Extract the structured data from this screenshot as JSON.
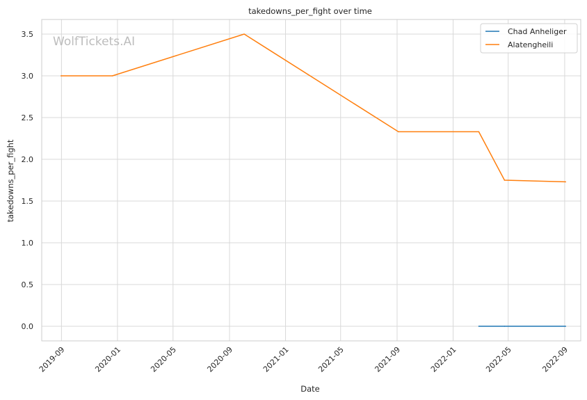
{
  "watermark": "WolfTickets.AI",
  "colors": {
    "background": "#ffffff",
    "grid": "#d9d9d9",
    "spine": "#cccccc",
    "chad": "#1f77b4",
    "alatengheili": "#ff7f0e"
  },
  "chart_data": {
    "type": "line",
    "title": "takedowns_per_fight over time",
    "xlabel": "Date",
    "ylabel": "takedowns_per_fight",
    "xlim": [
      "2019-07-20",
      "2022-10-06"
    ],
    "ylim": [
      -0.175,
      3.675
    ],
    "grid": true,
    "legend_position": "top-right",
    "x_ticks": [
      "2019-09",
      "2020-01",
      "2020-05",
      "2020-09",
      "2021-01",
      "2021-05",
      "2021-09",
      "2022-01",
      "2022-05",
      "2022-09"
    ],
    "y_ticks": [
      "0.0",
      "0.5",
      "1.0",
      "1.5",
      "2.0",
      "2.5",
      "3.0",
      "3.5"
    ],
    "series": [
      {
        "name": "Chad Anheliger",
        "color": "#1f77b4",
        "points": [
          {
            "x": "2022-02-26",
            "y": 0.0
          },
          {
            "x": "2022-04-23",
            "y": 0.0
          },
          {
            "x": "2022-09-03",
            "y": 0.0
          }
        ]
      },
      {
        "name": "Alatengheili",
        "color": "#ff7f0e",
        "points": [
          {
            "x": "2019-08-31",
            "y": 3.0
          },
          {
            "x": "2019-12-21",
            "y": 3.0
          },
          {
            "x": "2020-10-03",
            "y": 3.5
          },
          {
            "x": "2021-09-04",
            "y": 2.33
          },
          {
            "x": "2022-02-26",
            "y": 2.33
          },
          {
            "x": "2022-04-23",
            "y": 1.75
          },
          {
            "x": "2022-09-03",
            "y": 1.73
          }
        ]
      }
    ]
  }
}
